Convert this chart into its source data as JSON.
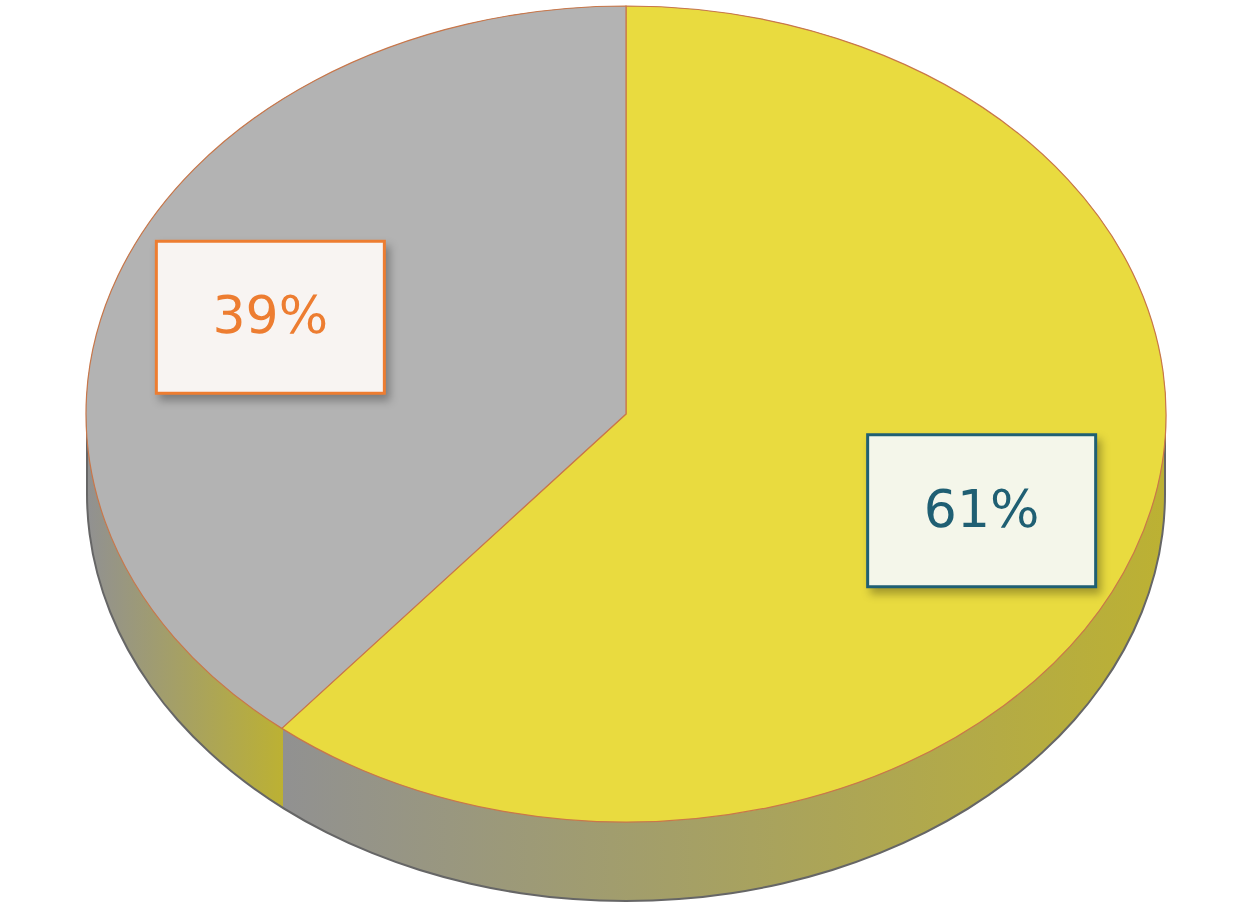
{
  "chart_data": {
    "type": "pie",
    "categories": [
      null,
      null
    ],
    "values": [
      61,
      39
    ],
    "colors": [
      "#e9db3f",
      "#b3b3b3"
    ],
    "value_labels": [
      "61%",
      "39%"
    ],
    "data_labels": true
  }
}
